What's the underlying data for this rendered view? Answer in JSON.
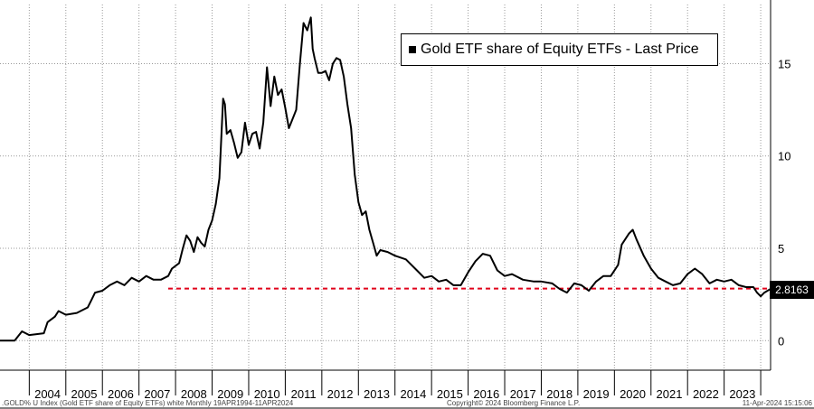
{
  "chart_data": {
    "type": "line",
    "title": "Gold ETF share of Equity ETFs - Last Price",
    "legend": {
      "label": "Gold ETF share of Equity ETFs - Last Price",
      "placement": "top-right"
    },
    "series": [
      {
        "name": "Gold ETF share of Equity ETFs",
        "color": "#000000",
        "points": [
          [
            2003.2,
            0.0
          ],
          [
            2003.6,
            0.0
          ],
          [
            2003.8,
            0.5
          ],
          [
            2004.0,
            0.3
          ],
          [
            2004.4,
            0.4
          ],
          [
            2004.5,
            1.0
          ],
          [
            2004.7,
            1.3
          ],
          [
            2004.8,
            1.6
          ],
          [
            2005.0,
            1.4
          ],
          [
            2005.3,
            1.5
          ],
          [
            2005.6,
            1.8
          ],
          [
            2005.7,
            2.2
          ],
          [
            2005.8,
            2.6
          ],
          [
            2006.0,
            2.7
          ],
          [
            2006.2,
            3.0
          ],
          [
            2006.4,
            3.2
          ],
          [
            2006.6,
            3.0
          ],
          [
            2006.8,
            3.4
          ],
          [
            2007.0,
            3.2
          ],
          [
            2007.2,
            3.5
          ],
          [
            2007.4,
            3.3
          ],
          [
            2007.6,
            3.3
          ],
          [
            2007.8,
            3.5
          ],
          [
            2007.9,
            3.9
          ],
          [
            2008.1,
            4.2
          ],
          [
            2008.2,
            5.0
          ],
          [
            2008.3,
            5.7
          ],
          [
            2008.4,
            5.4
          ],
          [
            2008.5,
            4.8
          ],
          [
            2008.6,
            5.6
          ],
          [
            2008.7,
            5.3
          ],
          [
            2008.8,
            5.1
          ],
          [
            2008.9,
            6.0
          ],
          [
            2009.0,
            6.5
          ],
          [
            2009.1,
            7.4
          ],
          [
            2009.2,
            8.8
          ],
          [
            2009.3,
            13.1
          ],
          [
            2009.35,
            12.8
          ],
          [
            2009.4,
            11.2
          ],
          [
            2009.5,
            11.4
          ],
          [
            2009.6,
            10.7
          ],
          [
            2009.7,
            9.9
          ],
          [
            2009.8,
            10.2
          ],
          [
            2009.9,
            11.8
          ],
          [
            2010.0,
            10.6
          ],
          [
            2010.1,
            11.2
          ],
          [
            2010.2,
            11.3
          ],
          [
            2010.3,
            10.4
          ],
          [
            2010.4,
            11.8
          ],
          [
            2010.5,
            14.8
          ],
          [
            2010.6,
            12.7
          ],
          [
            2010.7,
            14.3
          ],
          [
            2010.8,
            13.3
          ],
          [
            2010.9,
            13.6
          ],
          [
            2011.0,
            12.6
          ],
          [
            2011.1,
            11.5
          ],
          [
            2011.2,
            12.0
          ],
          [
            2011.3,
            12.5
          ],
          [
            2011.4,
            15.0
          ],
          [
            2011.5,
            17.2
          ],
          [
            2011.6,
            16.8
          ],
          [
            2011.7,
            17.5
          ],
          [
            2011.75,
            15.8
          ],
          [
            2011.8,
            15.3
          ],
          [
            2011.9,
            14.5
          ],
          [
            2012.0,
            14.5
          ],
          [
            2012.1,
            14.6
          ],
          [
            2012.2,
            14.1
          ],
          [
            2012.3,
            15.0
          ],
          [
            2012.4,
            15.3
          ],
          [
            2012.5,
            15.2
          ],
          [
            2012.6,
            14.3
          ],
          [
            2012.7,
            12.8
          ],
          [
            2012.8,
            11.5
          ],
          [
            2012.9,
            9.0
          ],
          [
            2013.0,
            7.5
          ],
          [
            2013.1,
            6.8
          ],
          [
            2013.2,
            7.0
          ],
          [
            2013.3,
            6.0
          ],
          [
            2013.4,
            5.3
          ],
          [
            2013.5,
            4.6
          ],
          [
            2013.6,
            4.9
          ],
          [
            2013.8,
            4.8
          ],
          [
            2014.0,
            4.6
          ],
          [
            2014.3,
            4.4
          ],
          [
            2014.6,
            3.8
          ],
          [
            2014.8,
            3.4
          ],
          [
            2015.0,
            3.5
          ],
          [
            2015.2,
            3.2
          ],
          [
            2015.4,
            3.3
          ],
          [
            2015.6,
            3.0
          ],
          [
            2015.8,
            3.0
          ],
          [
            2016.0,
            3.7
          ],
          [
            2016.2,
            4.3
          ],
          [
            2016.4,
            4.7
          ],
          [
            2016.6,
            4.6
          ],
          [
            2016.8,
            3.8
          ],
          [
            2017.0,
            3.5
          ],
          [
            2017.2,
            3.6
          ],
          [
            2017.5,
            3.3
          ],
          [
            2017.8,
            3.2
          ],
          [
            2018.0,
            3.2
          ],
          [
            2018.3,
            3.1
          ],
          [
            2018.5,
            2.8
          ],
          [
            2018.7,
            2.6
          ],
          [
            2018.9,
            3.1
          ],
          [
            2019.1,
            3.0
          ],
          [
            2019.3,
            2.7
          ],
          [
            2019.5,
            3.2
          ],
          [
            2019.7,
            3.5
          ],
          [
            2019.9,
            3.5
          ],
          [
            2020.1,
            4.1
          ],
          [
            2020.2,
            5.2
          ],
          [
            2020.4,
            5.8
          ],
          [
            2020.5,
            6.0
          ],
          [
            2020.6,
            5.5
          ],
          [
            2020.8,
            4.6
          ],
          [
            2021.0,
            3.9
          ],
          [
            2021.2,
            3.4
          ],
          [
            2021.4,
            3.2
          ],
          [
            2021.6,
            3.0
          ],
          [
            2021.8,
            3.1
          ],
          [
            2022.0,
            3.6
          ],
          [
            2022.2,
            3.9
          ],
          [
            2022.4,
            3.6
          ],
          [
            2022.6,
            3.1
          ],
          [
            2022.8,
            3.3
          ],
          [
            2023.0,
            3.2
          ],
          [
            2023.2,
            3.3
          ],
          [
            2023.4,
            3.0
          ],
          [
            2023.6,
            2.9
          ],
          [
            2023.8,
            2.9
          ],
          [
            2023.9,
            2.6
          ],
          [
            2024.0,
            2.4
          ],
          [
            2024.1,
            2.6
          ],
          [
            2024.27,
            2.8
          ]
        ]
      }
    ],
    "reference_line": {
      "value": 2.8163,
      "style": "dashed",
      "color": "#e0001b",
      "from": 2007.8
    },
    "last_value_label": "2.8163",
    "xlim": [
      2003.2,
      2024.27
    ],
    "ylim": [
      -1.6,
      18.2
    ],
    "yticks": [
      0,
      5,
      10,
      15
    ],
    "ytick_labels": [
      "0",
      "5",
      "10",
      "15"
    ],
    "xtick_labels": [
      "2004",
      "2005",
      "2006",
      "2007",
      "2008",
      "2009",
      "2010",
      "2011",
      "2012",
      "2013",
      "2014",
      "2015",
      "2016",
      "2017",
      "2018",
      "2019",
      "2020",
      "2021",
      "2022",
      "2023"
    ],
    "grid": true,
    "xlabel": "",
    "ylabel": ""
  },
  "footer": {
    "left": ".GOLD% U Index (Gold ETF share of Equity ETFs) white  Monthly 19APR1994-11APR2024",
    "center": "Copyright© 2024 Bloomberg Finance L.P.",
    "right": "11-Apr-2024 15:15:06"
  }
}
